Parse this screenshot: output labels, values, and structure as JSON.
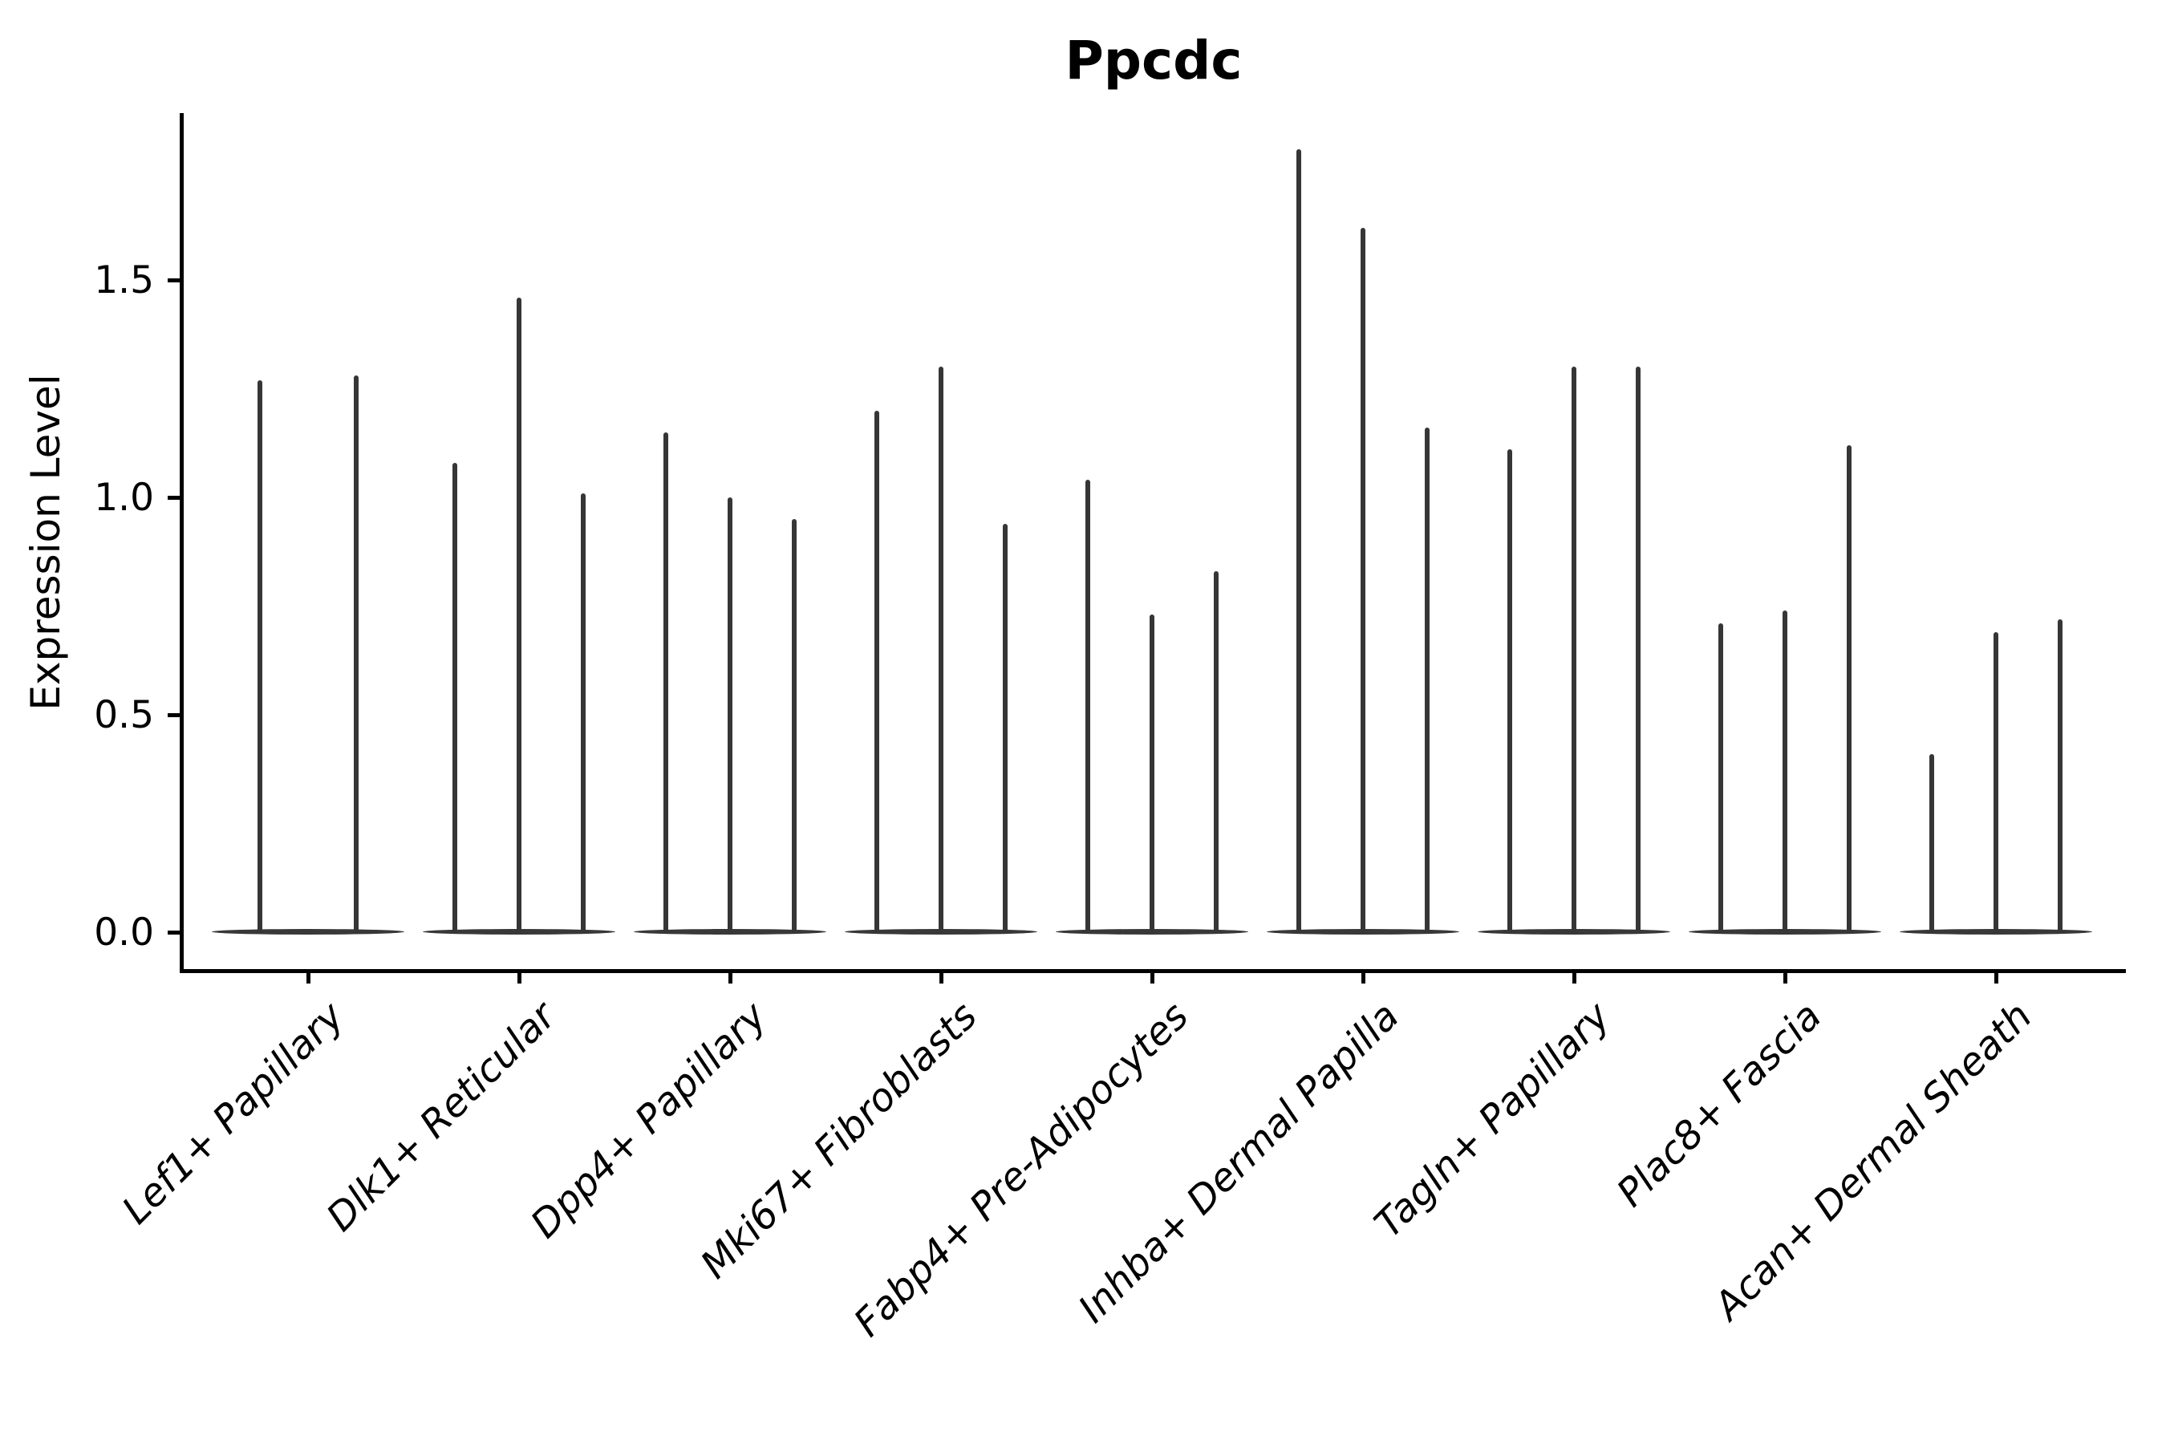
{
  "figure": {
    "title": "Ppcdc",
    "background_color": "#ffffff"
  },
  "chart_data": {
    "type": "violin",
    "title": "Ppcdc",
    "xlabel": "",
    "ylabel": "Expression Level",
    "ytick_labels": [
      "0.0",
      "0.5",
      "1.0",
      "1.5"
    ],
    "ytick_values": [
      0.0,
      0.5,
      1.0,
      1.5
    ],
    "ylim": [
      -0.09,
      1.88
    ],
    "grid": false,
    "legend": "none",
    "xtick_rotation": 45,
    "xtick_style": "italic",
    "shape_note": "each violin is a flat lens at 0 expression with a single thin density spike",
    "categories": [
      "Lef1+ Papillary",
      "Dlk1+ Reticular",
      "Dpp4+ Papillary",
      "Mki67+ Fibroblasts",
      "Fabp4+ Pre-Adipocytes",
      "Inhba+ Dermal Papilla",
      "Tagln+ Papillary",
      "Plac8+ Fascia",
      "Acan+ Dermal Sheath"
    ],
    "groups": [
      {
        "category": "Lef1+ Papillary",
        "spike_max_values": [
          1.27,
          1.28
        ]
      },
      {
        "category": "Dlk1+ Reticular",
        "spike_max_values": [
          1.08,
          1.46,
          1.01
        ]
      },
      {
        "category": "Dpp4+ Papillary",
        "spike_max_values": [
          1.15,
          1.0,
          0.95
        ]
      },
      {
        "category": "Mki67+ Fibroblasts",
        "spike_max_values": [
          1.2,
          1.3,
          0.94
        ]
      },
      {
        "category": "Fabp4+ Pre-Adipocytes",
        "spike_max_values": [
          1.04,
          0.73,
          0.83
        ]
      },
      {
        "category": "Inhba+ Dermal Papilla",
        "spike_max_values": [
          1.8,
          1.62,
          1.16
        ]
      },
      {
        "category": "Tagln+ Papillary",
        "spike_max_values": [
          1.11,
          1.3,
          1.3
        ]
      },
      {
        "category": "Plac8+ Fascia",
        "spike_max_values": [
          0.71,
          0.74,
          1.12
        ]
      },
      {
        "category": "Acan+ Dermal Sheath",
        "spike_max_values": [
          0.41,
          0.69,
          0.72
        ]
      }
    ],
    "colors": {
      "violin": "#363636",
      "axis": "#000000",
      "text": "#000000",
      "background": "#ffffff"
    }
  }
}
